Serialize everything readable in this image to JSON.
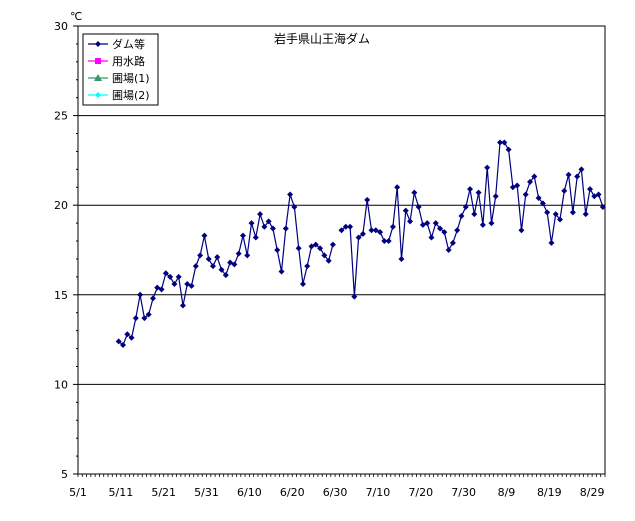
{
  "chart_data": {
    "type": "line",
    "title": "岩手県山王海ダム",
    "ylabel": "℃",
    "xlabel": "",
    "ylim": [
      5,
      30
    ],
    "yticks": [
      "5",
      "10",
      "15",
      "20",
      "25",
      "30"
    ],
    "xtick_labels": [
      "5/1",
      "5/11",
      "5/21",
      "5/31",
      "6/10",
      "6/20",
      "6/30",
      "7/10",
      "7/20",
      "7/30",
      "8/9",
      "8/19",
      "8/29"
    ],
    "grid": "horizontal",
    "legend_position": "top-left",
    "series": [
      {
        "name": "ダム等",
        "color": "#000080",
        "marker": "diamond",
        "x": [
          "5/10",
          "5/11",
          "5/12",
          "5/13",
          "5/14",
          "5/15",
          "5/16",
          "5/17",
          "5/18",
          "5/19",
          "5/20",
          "5/21",
          "5/22",
          "5/23",
          "5/24",
          "5/25",
          "5/26",
          "5/27",
          "5/28",
          "5/29",
          "5/30",
          "5/31",
          "6/1",
          "6/2",
          "6/3",
          "6/4",
          "6/5",
          "6/6",
          "6/7",
          "6/8",
          "6/9",
          "6/10",
          "6/11",
          "6/12",
          "6/13",
          "6/14",
          "6/15",
          "6/16",
          "6/17",
          "6/18",
          "6/19",
          "6/20",
          "6/21",
          "6/22",
          "6/23",
          "6/24",
          "6/25",
          "6/26",
          "6/27",
          "6/28",
          "6/29",
          "6/30",
          "7/1",
          "7/2",
          "7/3",
          "7/4",
          "7/5",
          "7/6",
          "7/7",
          "7/8",
          "7/9",
          "7/10",
          "7/11",
          "7/12",
          "7/13",
          "7/14",
          "7/15",
          "7/16",
          "7/17",
          "7/18",
          "7/19",
          "7/20",
          "7/21",
          "7/22",
          "7/23",
          "7/24",
          "7/25",
          "7/26",
          "7/27",
          "7/28",
          "7/29",
          "7/30",
          "7/31",
          "8/1",
          "8/2",
          "8/3",
          "8/4",
          "8/5",
          "8/6",
          "8/7",
          "8/8",
          "8/9",
          "8/10",
          "8/11",
          "8/12",
          "8/13",
          "8/14",
          "8/15",
          "8/16",
          "8/17",
          "8/18",
          "8/19",
          "8/20",
          "8/21",
          "8/22",
          "8/23",
          "8/24",
          "8/25",
          "8/26",
          "8/27",
          "8/28",
          "8/29",
          "8/30",
          "8/31"
        ],
        "values": [
          12.4,
          12.2,
          12.8,
          12.6,
          13.7,
          15.0,
          13.7,
          13.9,
          14.8,
          15.4,
          15.3,
          16.2,
          16.0,
          15.6,
          16.0,
          14.4,
          15.6,
          15.5,
          16.6,
          17.2,
          18.3,
          17.0,
          16.6,
          17.1,
          16.4,
          16.1,
          16.8,
          16.7,
          17.3,
          18.3,
          17.2,
          19.0,
          18.2,
          19.5,
          18.8,
          19.1,
          18.7,
          17.5,
          16.3,
          18.7,
          20.6,
          19.9,
          17.6,
          15.6,
          16.6,
          17.7,
          17.8,
          17.6,
          17.2,
          16.9,
          17.8,
          null,
          18.6,
          18.8,
          18.8,
          14.9,
          18.2,
          18.4,
          20.3,
          18.6,
          18.6,
          18.5,
          18.0,
          18.0,
          18.8,
          21.0,
          17.0,
          19.7,
          19.1,
          20.7,
          19.9,
          18.9,
          19.0,
          18.2,
          19.0,
          18.7,
          18.5,
          17.5,
          17.9,
          18.6,
          19.4,
          19.9,
          20.9,
          19.5,
          20.7,
          18.9,
          22.1,
          19.0,
          20.5,
          23.5,
          23.5,
          23.1,
          21.0,
          21.1,
          18.6,
          20.6,
          21.3,
          21.6,
          20.4,
          20.1,
          19.6,
          17.9,
          19.5,
          19.2,
          20.8,
          21.7,
          19.6,
          21.6,
          22.0,
          19.5,
          20.9,
          20.5,
          20.6,
          19.9
        ]
      },
      {
        "name": "用水路",
        "color": "#ff00ff",
        "marker": "square",
        "x": [],
        "values": []
      },
      {
        "name": "圃場(1)",
        "color": "#339966",
        "marker": "triangle",
        "x": [],
        "values": []
      },
      {
        "name": "圃場(2)",
        "color": "#00ffff",
        "marker": "diamond",
        "x": [],
        "values": []
      }
    ]
  }
}
